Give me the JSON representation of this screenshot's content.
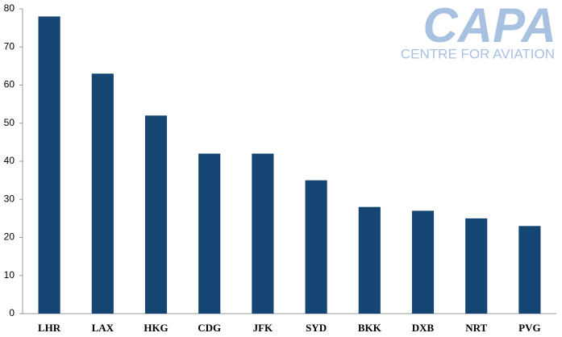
{
  "chart_data": {
    "type": "bar",
    "watermark": {
      "logo": "CAPA",
      "tagline": "CENTRE FOR AVIATION"
    },
    "categories": [
      "LHR",
      "LAX",
      "HKG",
      "CDG",
      "JFK",
      "SYD",
      "BKK",
      "DXB",
      "NRT",
      "PVG"
    ],
    "values": [
      78,
      63,
      52,
      42,
      42,
      35,
      28,
      27,
      25,
      23
    ],
    "color": "#154673",
    "ylim": [
      0,
      80
    ],
    "yticks": [
      0,
      10,
      20,
      30,
      40,
      50,
      60,
      70,
      80
    ],
    "grid": false
  }
}
